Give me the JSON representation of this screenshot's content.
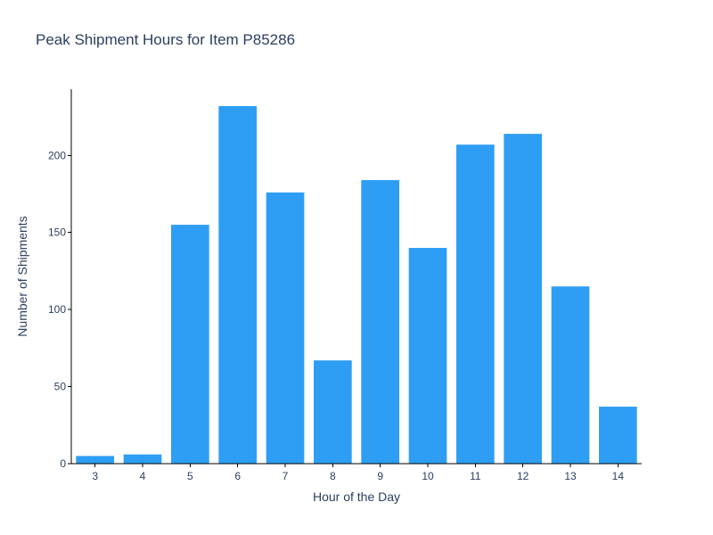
{
  "chart_data": {
    "type": "bar",
    "title": "Peak Shipment Hours for Item P85286",
    "xlabel": "Hour of the Day",
    "ylabel": "Number of Shipments",
    "categories": [
      "3",
      "4",
      "5",
      "6",
      "7",
      "8",
      "9",
      "10",
      "11",
      "12",
      "13",
      "14"
    ],
    "values": [
      5,
      6,
      155,
      232,
      176,
      67,
      184,
      140,
      207,
      214,
      115,
      37
    ],
    "ylim": [
      0,
      243
    ],
    "yticks": [
      0,
      50,
      100,
      150,
      200
    ],
    "grid": false,
    "legend": "none",
    "bar_color": "#2e9ef4"
  }
}
